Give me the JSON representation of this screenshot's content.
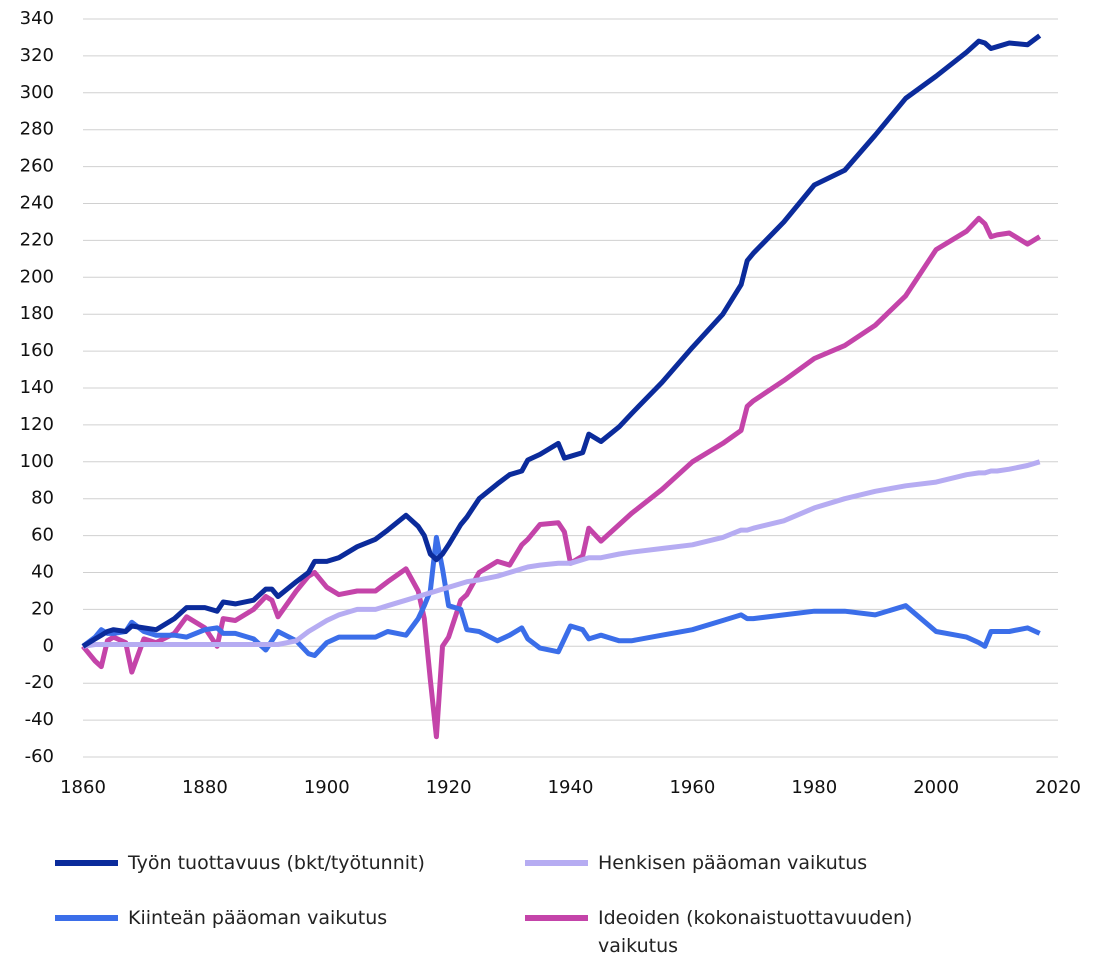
{
  "chart_data": {
    "type": "line",
    "x": [
      1860,
      1862,
      1863,
      1864,
      1865,
      1867,
      1868,
      1870,
      1872,
      1875,
      1877,
      1880,
      1882,
      1883,
      1885,
      1888,
      1890,
      1891,
      1892,
      1895,
      1897,
      1898,
      1900,
      1902,
      1905,
      1908,
      1910,
      1913,
      1915,
      1916,
      1917,
      1918,
      1919,
      1920,
      1922,
      1923,
      1925,
      1928,
      1930,
      1932,
      1933,
      1935,
      1938,
      1939,
      1940,
      1942,
      1943,
      1945,
      1948,
      1950,
      1955,
      1960,
      1965,
      1968,
      1969,
      1970,
      1975,
      1980,
      1985,
      1990,
      1995,
      2000,
      2005,
      2007,
      2008,
      2009,
      2010,
      2012,
      2015,
      2017
    ],
    "series": [
      {
        "name": "Työn tuottavuus (bkt/työtunnit)",
        "color": "#0b2b9b",
        "values": [
          0,
          4,
          6,
          8,
          9,
          8,
          11,
          10,
          9,
          15,
          21,
          21,
          19,
          24,
          23,
          25,
          31,
          31,
          27,
          35,
          40,
          46,
          46,
          48,
          54,
          58,
          63,
          71,
          65,
          60,
          50,
          47,
          50,
          55,
          66,
          70,
          80,
          88,
          93,
          95,
          101,
          104,
          110,
          102,
          103,
          105,
          115,
          111,
          119,
          126,
          143,
          162,
          180,
          196,
          209,
          213,
          230,
          250,
          258,
          277,
          297,
          309,
          322,
          328,
          327,
          324,
          325,
          327,
          326,
          331
        ]
      },
      {
        "name": "Henkisen pääoman vaikutus",
        "color": "#b6acf2",
        "values": [
          0,
          1,
          1,
          1,
          1,
          1,
          1,
          1,
          1,
          1,
          1,
          1,
          1,
          1,
          1,
          1,
          1,
          1,
          1,
          3,
          8,
          10,
          14,
          17,
          20,
          20,
          22,
          25,
          27,
          28,
          29,
          30,
          31,
          32,
          34,
          35,
          36,
          38,
          40,
          42,
          43,
          44,
          45,
          45,
          45,
          47,
          48,
          48,
          50,
          51,
          53,
          55,
          59,
          63,
          63,
          64,
          68,
          75,
          80,
          84,
          87,
          89,
          93,
          94,
          94,
          95,
          95,
          96,
          98,
          100
        ]
      },
      {
        "name": "Kiinteän pääoman vaikutus",
        "color": "#3b6ee9",
        "values": [
          0,
          5,
          9,
          7,
          7,
          8,
          13,
          8,
          6,
          6,
          5,
          9,
          10,
          7,
          7,
          4,
          -2,
          3,
          8,
          3,
          -4,
          -5,
          2,
          5,
          5,
          5,
          8,
          6,
          15,
          22,
          30,
          59,
          42,
          22,
          20,
          9,
          8,
          3,
          6,
          10,
          4,
          -1,
          -3,
          4,
          11,
          9,
          4,
          6,
          3,
          3,
          6,
          9,
          14,
          17,
          15,
          15,
          17,
          19,
          19,
          17,
          22,
          8,
          5,
          2,
          0,
          8,
          8,
          8,
          10,
          7
        ]
      },
      {
        "name": "Ideoiden (kokonaistuottavuuden) vaikutus",
        "color": "#c444a9",
        "values": [
          0,
          -8,
          -11,
          3,
          5,
          2,
          -14,
          4,
          2,
          7,
          16,
          10,
          0,
          15,
          14,
          20,
          27,
          25,
          16,
          30,
          38,
          40,
          32,
          28,
          30,
          30,
          35,
          42,
          30,
          15,
          -18,
          -49,
          0,
          5,
          25,
          28,
          40,
          46,
          44,
          55,
          58,
          66,
          67,
          62,
          45,
          49,
          64,
          57,
          66,
          72,
          85,
          100,
          110,
          117,
          130,
          133,
          144,
          156,
          163,
          174,
          190,
          215,
          225,
          232,
          229,
          222,
          223,
          224,
          218,
          222
        ]
      }
    ],
    "xlim": [
      1860,
      2020
    ],
    "xticks": [
      1860,
      1880,
      1900,
      1920,
      1940,
      1960,
      1980,
      2000,
      2020
    ],
    "ylim": [
      -60,
      340
    ],
    "yticks": [
      -60,
      -40,
      -20,
      0,
      20,
      40,
      60,
      80,
      100,
      120,
      140,
      160,
      180,
      200,
      220,
      240,
      260,
      280,
      300,
      320,
      340
    ],
    "grid": true
  }
}
